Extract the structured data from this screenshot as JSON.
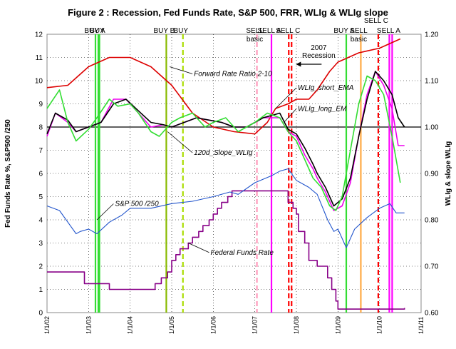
{
  "chart_data": {
    "type": "line",
    "title": "Figure 2 :  Recession,  Fed Funds Rate,  S&P 500,  FRR,  WLIg  &  WLIg slope",
    "ylabel_left": "Fed Funds Rate %,   S&P500 /250",
    "ylabel_right": "WLIg  &  slope WLIg",
    "xlim": [
      2002.0,
      2011.0
    ],
    "ylim_left": [
      0,
      12
    ],
    "ylim_right": [
      0.6,
      1.2
    ],
    "x_ticks": [
      "1/1/02",
      "1/1/03",
      "1/1/04",
      "1/1/05",
      "1/1/06",
      "1/1/07",
      "1/1/08",
      "1/1/09",
      "1/1/10",
      "1/1/11"
    ],
    "y_ticks_left": [
      "0",
      "1",
      "2",
      "3",
      "4",
      "5",
      "6",
      "7",
      "8",
      "9",
      "10",
      "11",
      "12"
    ],
    "y_ticks_right": [
      "0.60",
      "0.70",
      "0.80",
      "0.90",
      "1.00",
      "1.10",
      "1.20"
    ],
    "grid": true,
    "reference_line_right": 1.0,
    "recession_label": "2007\nRecession",
    "recession_start": 2007.92,
    "series": [
      {
        "name": "Federal Funds Rate",
        "axis": "left",
        "color": "#880088",
        "step": true,
        "x": [
          2002.0,
          2002.9,
          2003.5,
          2004.5,
          2004.6,
          2004.75,
          2004.9,
          2005.0,
          2005.1,
          2005.2,
          2005.4,
          2005.5,
          2005.65,
          2005.75,
          2005.9,
          2006.0,
          2006.1,
          2006.2,
          2006.35,
          2006.45,
          2007.7,
          2007.8,
          2007.92,
          2008.0,
          2008.05,
          2008.2,
          2008.3,
          2008.5,
          2008.75,
          2008.85,
          2008.95,
          2009.0,
          2009.5,
          2010.0,
          2010.6
        ],
        "y": [
          1.75,
          1.25,
          1.0,
          1.0,
          1.25,
          1.5,
          1.75,
          2.25,
          2.5,
          2.75,
          3.0,
          3.25,
          3.5,
          3.75,
          4.0,
          4.25,
          4.5,
          4.75,
          5.0,
          5.25,
          5.25,
          4.75,
          4.5,
          4.25,
          3.5,
          3.0,
          2.25,
          2.0,
          1.5,
          1.0,
          0.5,
          0.15,
          0.15,
          0.15,
          0.2
        ]
      },
      {
        "name": "S&P 500 /250",
        "axis": "left",
        "color": "#2255cc",
        "x": [
          2002.0,
          2002.3,
          2002.5,
          2002.7,
          2002.8,
          2003.0,
          2003.2,
          2003.5,
          2003.8,
          2004.0,
          2004.5,
          2005.0,
          2005.5,
          2006.0,
          2006.4,
          2006.6,
          2007.0,
          2007.4,
          2007.6,
          2007.8,
          2008.0,
          2008.3,
          2008.5,
          2008.75,
          2008.9,
          2009.0,
          2009.2,
          2009.4,
          2009.7,
          2010.0,
          2010.25,
          2010.4,
          2010.6
        ],
        "y": [
          4.6,
          4.4,
          3.9,
          3.4,
          3.5,
          3.6,
          3.4,
          3.9,
          4.2,
          4.5,
          4.5,
          4.7,
          4.8,
          5.0,
          5.2,
          5.1,
          5.6,
          5.9,
          6.1,
          6.2,
          5.7,
          5.4,
          5.1,
          4.0,
          3.5,
          3.6,
          2.8,
          3.6,
          4.1,
          4.5,
          4.7,
          4.3,
          4.3
        ]
      },
      {
        "name": "Forward Rate Ratio 2-10",
        "axis": "right",
        "color": "#dd0000",
        "x": [
          2002.0,
          2002.5,
          2003.0,
          2003.5,
          2004.0,
          2004.5,
          2005.0,
          2005.5,
          2006.0,
          2006.5,
          2007.0,
          2007.3,
          2007.5,
          2007.8,
          2008.0,
          2008.3,
          2008.5,
          2008.8,
          2009.0,
          2009.5,
          2010.0,
          2010.5
        ],
        "y": [
          1.085,
          1.09,
          1.13,
          1.15,
          1.15,
          1.13,
          1.09,
          1.03,
          1.0,
          0.99,
          0.985,
          1.01,
          1.04,
          1.05,
          1.06,
          1.06,
          1.08,
          1.12,
          1.14,
          1.16,
          1.17,
          1.19
        ]
      },
      {
        "name": "WLIg_short_EMA",
        "axis": "right",
        "color": "#ee00ee",
        "x": [
          2002.0,
          2002.2,
          2002.5,
          2002.7,
          2003.0,
          2003.3,
          2003.6,
          2003.9,
          2004.2,
          2004.5,
          2004.8,
          2005.0,
          2005.3,
          2005.6,
          2005.9,
          2006.2,
          2006.5,
          2006.8,
          2007.0,
          2007.2,
          2007.4,
          2007.6,
          2007.8,
          2008.0,
          2008.2,
          2008.4,
          2008.5,
          2008.7,
          2008.9,
          2009.1,
          2009.3,
          2009.5,
          2009.7,
          2009.9,
          2010.1,
          2010.3,
          2010.45,
          2010.6
        ],
        "y": [
          0.98,
          1.03,
          1.01,
          0.99,
          1.0,
          1.01,
          1.06,
          1.06,
          1.03,
          1.0,
          1.005,
          1.0,
          1.01,
          1.02,
          1.015,
          1.01,
          1.0,
          1.0,
          1.01,
          1.02,
          1.02,
          1.02,
          0.99,
          0.98,
          0.94,
          0.91,
          0.89,
          0.86,
          0.82,
          0.83,
          0.88,
          0.98,
          1.07,
          1.12,
          1.09,
          1.04,
          0.96,
          0.96
        ]
      },
      {
        "name": "WLIg_long_EM",
        "axis": "right",
        "color": "#000000",
        "x": [
          2002.0,
          2002.2,
          2002.5,
          2002.7,
          2003.0,
          2003.3,
          2003.6,
          2003.9,
          2004.2,
          2004.5,
          2004.8,
          2005.0,
          2005.3,
          2005.6,
          2005.9,
          2006.2,
          2006.5,
          2006.8,
          2007.0,
          2007.2,
          2007.4,
          2007.6,
          2007.8,
          2008.0,
          2008.2,
          2008.4,
          2008.5,
          2008.7,
          2008.9,
          2009.1,
          2009.3,
          2009.5,
          2009.7,
          2009.9,
          2010.1,
          2010.3,
          2010.45,
          2010.6
        ],
        "y": [
          0.985,
          1.03,
          1.015,
          0.99,
          1.0,
          1.01,
          1.05,
          1.06,
          1.035,
          1.01,
          1.005,
          1.0,
          1.01,
          1.02,
          1.015,
          1.01,
          1.0,
          1.0,
          1.01,
          1.02,
          1.025,
          1.03,
          0.995,
          0.985,
          0.955,
          0.92,
          0.9,
          0.87,
          0.83,
          0.845,
          0.89,
          0.98,
          1.06,
          1.12,
          1.1,
          1.07,
          1.02,
          1.0
        ]
      },
      {
        "name": "120d_Slope_WLIg",
        "axis": "right",
        "color": "#33dd33",
        "x": [
          2002.0,
          2002.3,
          2002.5,
          2002.7,
          2003.0,
          2003.2,
          2003.5,
          2003.7,
          2004.0,
          2004.2,
          2004.5,
          2004.7,
          2004.9,
          2005.0,
          2005.2,
          2005.5,
          2005.8,
          2006.0,
          2006.3,
          2006.6,
          2007.0,
          2007.3,
          2007.6,
          2007.8,
          2008.0,
          2008.2,
          2008.4,
          2008.6,
          2008.8,
          2008.95,
          2009.1,
          2009.3,
          2009.5,
          2009.7,
          2009.9,
          2010.1,
          2010.3,
          2010.5
        ],
        "y": [
          1.04,
          1.08,
          1.01,
          0.97,
          0.995,
          1.02,
          1.06,
          1.045,
          1.05,
          1.03,
          0.99,
          0.98,
          1.0,
          1.01,
          1.02,
          1.03,
          1.0,
          1.01,
          1.02,
          0.99,
          1.01,
          1.03,
          1.02,
          0.99,
          0.97,
          0.93,
          0.89,
          0.87,
          0.83,
          0.82,
          0.85,
          0.95,
          1.05,
          1.11,
          1.1,
          1.07,
          0.98,
          0.88
        ]
      }
    ],
    "signals": [
      {
        "label": "BUY A",
        "x": 2003.2,
        "color": "#33dd33",
        "style": "solid",
        "double": true
      },
      {
        "label": "BUY",
        "x": 2003.26,
        "color": "#33dd33",
        "style": "solid",
        "double": false
      },
      {
        "label": "BUY B",
        "x": 2004.87,
        "color": "#88bb00",
        "style": "solid",
        "double": false
      },
      {
        "label": "BUY",
        "x": 2005.27,
        "color": "#aadd00",
        "style": "dashed",
        "double": false
      },
      {
        "label": "SELL\nbasic",
        "x": 2007.05,
        "color": "#ff99bb",
        "style": "dashed",
        "double": false
      },
      {
        "label": "SELL A",
        "x": 2007.4,
        "color": "#ff00ff",
        "style": "solid",
        "double": false
      },
      {
        "label": "SELL C",
        "x": 2007.85,
        "color": "#ff0000",
        "style": "dashed",
        "double": true
      },
      {
        "label": "BUY A",
        "x": 2009.2,
        "color": "#33dd33",
        "style": "solid",
        "double": false
      },
      {
        "label": "SELL\nbasic",
        "x": 2009.55,
        "color": "#ffaa44",
        "style": "solid",
        "double": false
      },
      {
        "label": "SELL C",
        "x": 2009.97,
        "color": "#ff0000",
        "style": "dashed",
        "double": false
      },
      {
        "label": "SELL A",
        "x": 2010.27,
        "color": "#ff00ff",
        "style": "solid",
        "double": true
      }
    ],
    "annotations": [
      {
        "text": "Forward Rate Ratio 2-10",
        "x": 2005.5,
        "y": 1.11
      },
      {
        "text": "WLIg_short_EMA",
        "x": 2008.0,
        "y": 1.08
      },
      {
        "text": "WLIg_long_EM",
        "x": 2008.0,
        "y": 1.035
      },
      {
        "text": "120d_Slope_WLIg",
        "x": 2005.5,
        "y": 0.94
      },
      {
        "text": "S&P 500 /250",
        "x": 2003.6,
        "y": 0.83
      },
      {
        "text": "Federal Funds Rate",
        "x": 2005.9,
        "y": 0.725
      }
    ]
  }
}
